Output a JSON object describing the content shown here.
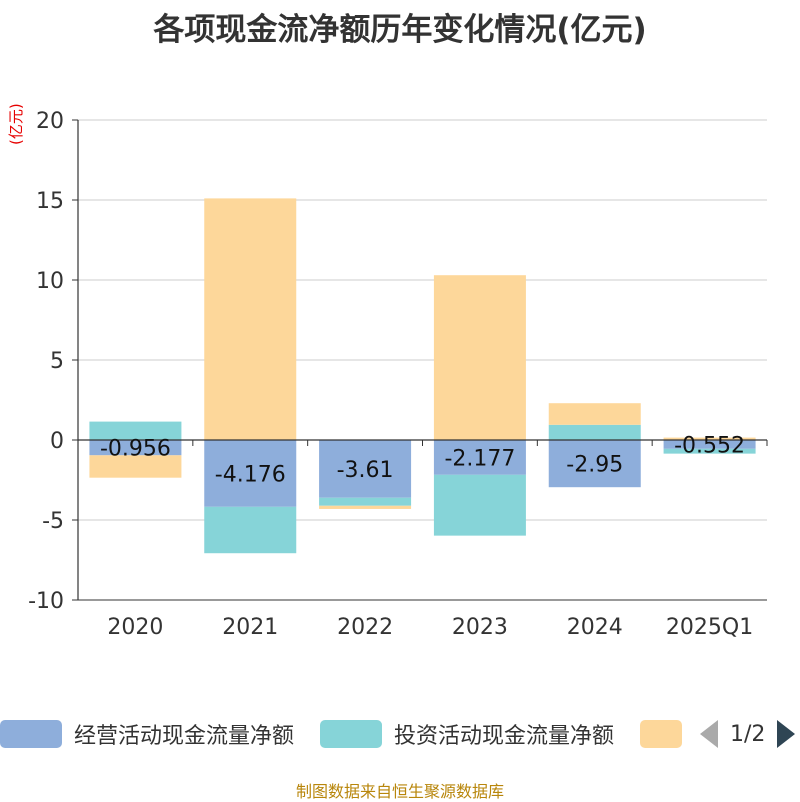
{
  "title": "各项现金流净额历年变化情况(亿元)",
  "footer": "制图数据来自恒生聚源数据库",
  "legend": {
    "items": [
      {
        "label": "经营活动现金流量净额",
        "color": "#8eaedb"
      },
      {
        "label": "投资活动现金流量净额",
        "color": "#86d4d8"
      },
      {
        "label": "",
        "color": "#fdd79a"
      }
    ],
    "page": "1/2"
  },
  "chart_data": {
    "type": "bar",
    "stacked": true,
    "unit_label": "(亿元)",
    "categories": [
      "2020",
      "2021",
      "2022",
      "2023",
      "2024",
      "2025Q1"
    ],
    "ylim": [
      -10,
      20
    ],
    "yticks": [
      -10,
      -5,
      0,
      5,
      10,
      15,
      20
    ],
    "grid": true,
    "legend_position": "bottom",
    "series": [
      {
        "name": "经营活动现金流量净额",
        "color": "#8eaedb",
        "values": [
          -0.956,
          -4.176,
          -3.61,
          -2.177,
          -2.95,
          -0.552
        ],
        "labels": [
          "-0.956",
          "-4.176",
          "-3.61",
          "-2.177",
          "-2.95",
          "-0.552"
        ]
      },
      {
        "name": "投资活动现金流量净额",
        "color": "#86d4d8",
        "values": [
          1.15,
          -2.9,
          -0.5,
          -3.8,
          0.95,
          -0.3
        ]
      },
      {
        "color": "#fdd79a",
        "values": [
          -1.4,
          15.1,
          -0.2,
          10.3,
          1.35,
          0.15
        ]
      }
    ]
  }
}
